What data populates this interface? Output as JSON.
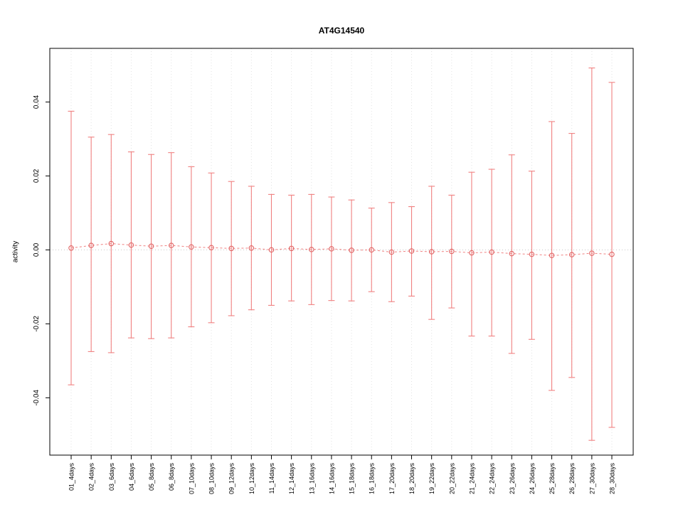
{
  "chart_data": {
    "type": "scatter",
    "title": "AT4G14540",
    "xlabel": "",
    "ylabel": "activity",
    "ylim": [
      -0.0555,
      0.0545
    ],
    "yticks": [
      -0.04,
      -0.02,
      0.0,
      0.02,
      0.04
    ],
    "ytick_labels": [
      "-0.04",
      "-0.02",
      "0.00",
      "0.02",
      "0.04"
    ],
    "grid": "dotted vertical gridline per category, dotted horizontal line at zero",
    "legend": "none",
    "error_bars": true,
    "categories": [
      "01_4days",
      "02_4days",
      "03_6days",
      "04_6days",
      "05_8days",
      "06_8days",
      "07_10days",
      "08_10days",
      "09_12days",
      "10_12days",
      "11_14days",
      "12_14days",
      "13_16days",
      "14_16days",
      "15_18days",
      "16_18days",
      "17_20days",
      "18_20days",
      "19_22days",
      "20_22days",
      "21_24days",
      "22_24days",
      "23_26days",
      "24_26days",
      "25_28days",
      "26_28days",
      "27_30days",
      "28_30days"
    ],
    "series": [
      {
        "name": "mean",
        "values": [
          0.0005,
          0.0012,
          0.0017,
          0.0013,
          0.001,
          0.0012,
          0.0008,
          0.0006,
          0.0004,
          0.0005,
          0.0,
          0.0004,
          0.0001,
          0.0003,
          -0.0001,
          0.0,
          -0.0006,
          -0.0003,
          -0.0005,
          -0.0004,
          -0.0008,
          -0.0006,
          -0.001,
          -0.0012,
          -0.0015,
          -0.0013,
          -0.0009,
          -0.0012
        ]
      },
      {
        "name": "upper",
        "values": [
          0.0375,
          0.0305,
          0.0312,
          0.0265,
          0.0258,
          0.0263,
          0.0225,
          0.0208,
          0.0185,
          0.0172,
          0.015,
          0.0148,
          0.015,
          0.0143,
          0.0135,
          0.0113,
          0.0128,
          0.0117,
          0.0172,
          0.0148,
          0.021,
          0.0218,
          0.0257,
          0.0213,
          0.0347,
          0.0315,
          0.0492,
          0.0453
        ]
      },
      {
        "name": "lower",
        "values": [
          -0.0365,
          -0.0275,
          -0.0278,
          -0.0238,
          -0.024,
          -0.0238,
          -0.0208,
          -0.0197,
          -0.0178,
          -0.0162,
          -0.015,
          -0.0138,
          -0.0148,
          -0.0137,
          -0.0138,
          -0.0113,
          -0.014,
          -0.0125,
          -0.0188,
          -0.0157,
          -0.0233,
          -0.0233,
          -0.028,
          -0.0242,
          -0.038,
          -0.0345,
          -0.0515,
          -0.048
        ]
      }
    ],
    "colors": {
      "errorbar": "#f08080",
      "point_stroke": "#e06666",
      "connect_line": "#f08080",
      "gridline": "#e2e2e2",
      "zero_line": "#c8c8c8",
      "axis": "#000000"
    }
  }
}
